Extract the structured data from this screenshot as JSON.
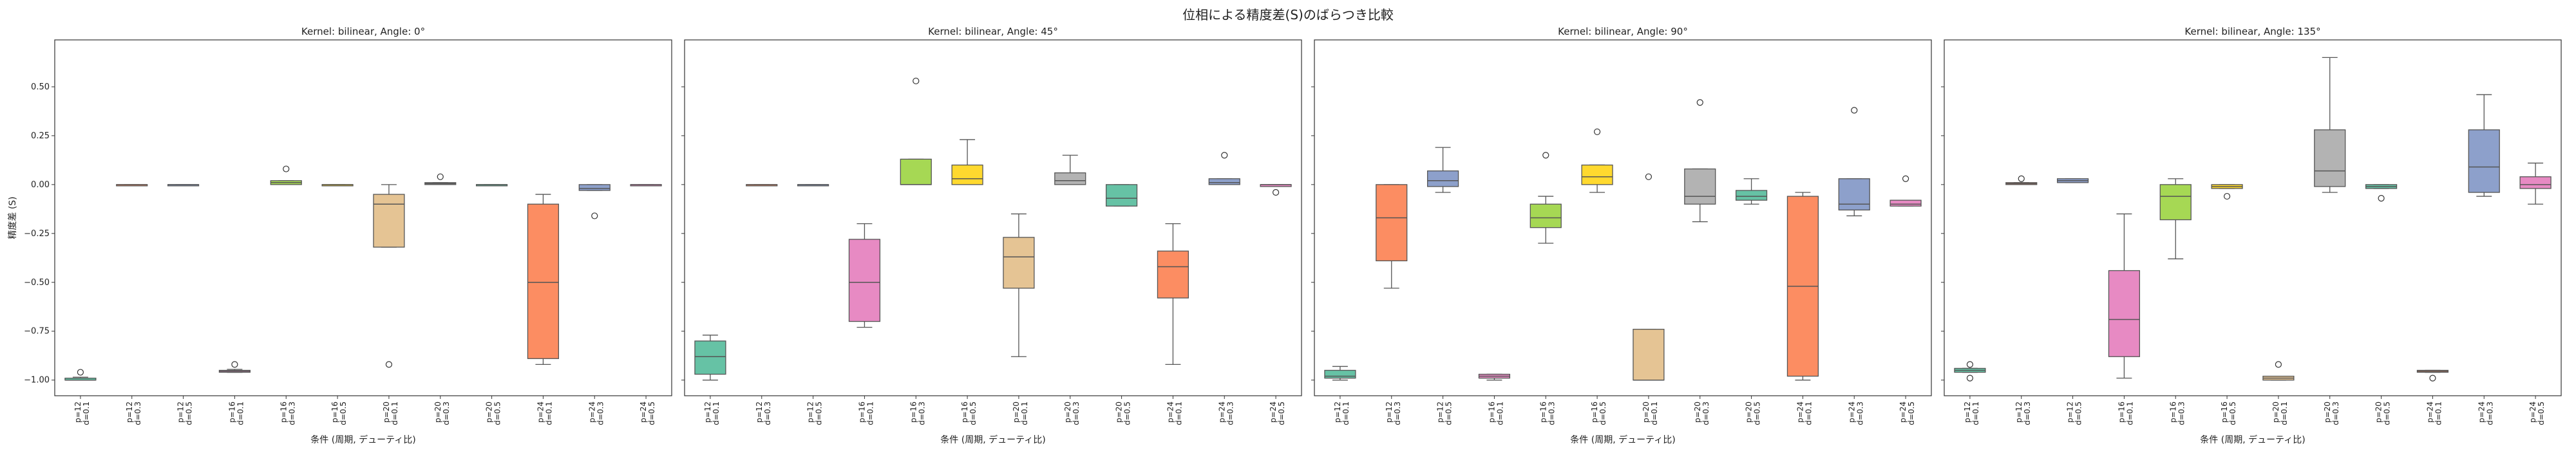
{
  "figure": {
    "suptitle": "位相による精度差(S)のばらつき比較"
  },
  "chart_data": [
    {
      "type": "box",
      "title": "Kernel: bilinear, Angle: 0°",
      "xlabel": "条件 (周期, デューティ比)",
      "ylabel": "精度差 (S)",
      "ylim": [
        -1.08,
        0.74
      ],
      "yticks": [
        -1.0,
        -0.75,
        -0.5,
        -0.25,
        0.0,
        0.25,
        0.5
      ],
      "ytick_labels": [
        "−1.00",
        "−0.75",
        "−0.50",
        "−0.25",
        "0.00",
        "0.25",
        "0.50"
      ],
      "categories": [
        [
          "p=12",
          "d=0.1"
        ],
        [
          "p=12",
          "d=0.3"
        ],
        [
          "p=12",
          "d=0.5"
        ],
        [
          "p=16",
          "d=0.1"
        ],
        [
          "p=16",
          "d=0.3"
        ],
        [
          "p=16",
          "d=0.5"
        ],
        [
          "p=20",
          "d=0.1"
        ],
        [
          "p=20",
          "d=0.3"
        ],
        [
          "p=20",
          "d=0.5"
        ],
        [
          "p=24",
          "d=0.1"
        ],
        [
          "p=24",
          "d=0.3"
        ],
        [
          "p=24",
          "d=0.5"
        ]
      ],
      "boxes": [
        {
          "min": -1.0,
          "q1": -1.0,
          "median": -1.0,
          "q3": -0.99,
          "max": -0.985,
          "outliers": [
            -0.96
          ]
        },
        {
          "min": 0.0,
          "q1": 0.0,
          "median": 0.0,
          "q3": 0.0,
          "max": 0.0,
          "outliers": []
        },
        {
          "min": 0.0,
          "q1": 0.0,
          "median": 0.0,
          "q3": 0.0,
          "max": 0.0,
          "outliers": []
        },
        {
          "min": -0.96,
          "q1": -0.96,
          "median": -0.955,
          "q3": -0.95,
          "max": -0.945,
          "outliers": [
            -0.92
          ]
        },
        {
          "min": 0.0,
          "q1": 0.0,
          "median": 0.01,
          "q3": 0.02,
          "max": 0.02,
          "outliers": [
            0.08
          ]
        },
        {
          "min": 0.0,
          "q1": 0.0,
          "median": 0.0,
          "q3": 0.0,
          "max": 0.0,
          "outliers": []
        },
        {
          "min": -0.32,
          "q1": -0.32,
          "median": -0.1,
          "q3": -0.05,
          "max": 0.0,
          "outliers": [
            -0.92
          ]
        },
        {
          "min": 0.0,
          "q1": 0.0,
          "median": 0.005,
          "q3": 0.01,
          "max": 0.01,
          "outliers": [
            0.04
          ]
        },
        {
          "min": 0.0,
          "q1": 0.0,
          "median": 0.0,
          "q3": 0.0,
          "max": 0.0,
          "outliers": []
        },
        {
          "min": -0.92,
          "q1": -0.89,
          "median": -0.5,
          "q3": -0.1,
          "max": -0.05,
          "outliers": []
        },
        {
          "min": -0.03,
          "q1": -0.03,
          "median": -0.02,
          "q3": 0.0,
          "max": 0.0,
          "outliers": [
            -0.16
          ]
        },
        {
          "min": 0.0,
          "q1": 0.0,
          "median": 0.0,
          "q3": 0.0,
          "max": 0.0,
          "outliers": []
        }
      ]
    },
    {
      "type": "box",
      "title": "Kernel: bilinear, Angle: 45°",
      "xlabel": "条件 (周期, デューティ比)",
      "ylabel": "",
      "ylim": [
        -1.08,
        0.74
      ],
      "yticks": [
        -1.0,
        -0.75,
        -0.5,
        -0.25,
        0.0,
        0.25,
        0.5
      ],
      "ytick_labels": [],
      "categories": [
        [
          "p=12",
          "d=0.1"
        ],
        [
          "p=12",
          "d=0.3"
        ],
        [
          "p=12",
          "d=0.5"
        ],
        [
          "p=16",
          "d=0.1"
        ],
        [
          "p=16",
          "d=0.3"
        ],
        [
          "p=16",
          "d=0.5"
        ],
        [
          "p=20",
          "d=0.1"
        ],
        [
          "p=20",
          "d=0.3"
        ],
        [
          "p=20",
          "d=0.5"
        ],
        [
          "p=24",
          "d=0.1"
        ],
        [
          "p=24",
          "d=0.3"
        ],
        [
          "p=24",
          "d=0.5"
        ]
      ],
      "boxes": [
        {
          "min": -1.0,
          "q1": -0.97,
          "median": -0.88,
          "q3": -0.8,
          "max": -0.77,
          "outliers": []
        },
        {
          "min": 0.0,
          "q1": 0.0,
          "median": 0.0,
          "q3": 0.0,
          "max": 0.0,
          "outliers": []
        },
        {
          "min": 0.0,
          "q1": 0.0,
          "median": 0.0,
          "q3": 0.0,
          "max": 0.0,
          "outliers": []
        },
        {
          "min": -0.73,
          "q1": -0.7,
          "median": -0.5,
          "q3": -0.28,
          "max": -0.2,
          "outliers": []
        },
        {
          "min": 0.0,
          "q1": 0.0,
          "median": 0.0,
          "q3": 0.13,
          "max": 0.13,
          "outliers": [
            0.53
          ]
        },
        {
          "min": 0.0,
          "q1": 0.0,
          "median": 0.03,
          "q3": 0.1,
          "max": 0.23,
          "outliers": []
        },
        {
          "min": -0.88,
          "q1": -0.53,
          "median": -0.37,
          "q3": -0.27,
          "max": -0.15,
          "outliers": []
        },
        {
          "min": 0.0,
          "q1": 0.0,
          "median": 0.02,
          "q3": 0.06,
          "max": 0.15,
          "outliers": []
        },
        {
          "min": -0.11,
          "q1": -0.11,
          "median": -0.07,
          "q3": 0.0,
          "max": 0.0,
          "outliers": []
        },
        {
          "min": -0.92,
          "q1": -0.58,
          "median": -0.42,
          "q3": -0.34,
          "max": -0.2,
          "outliers": []
        },
        {
          "min": 0.0,
          "q1": 0.0,
          "median": 0.01,
          "q3": 0.03,
          "max": 0.03,
          "outliers": [
            0.15
          ]
        },
        {
          "min": -0.01,
          "q1": -0.01,
          "median": 0.0,
          "q3": 0.0,
          "max": 0.0,
          "outliers": [
            -0.04
          ]
        }
      ]
    },
    {
      "type": "box",
      "title": "Kernel: bilinear, Angle: 90°",
      "xlabel": "条件 (周期, デューティ比)",
      "ylabel": "",
      "ylim": [
        -1.08,
        0.74
      ],
      "yticks": [
        -1.0,
        -0.75,
        -0.5,
        -0.25,
        0.0,
        0.25,
        0.5
      ],
      "ytick_labels": [],
      "categories": [
        [
          "p=12",
          "d=0.1"
        ],
        [
          "p=12",
          "d=0.3"
        ],
        [
          "p=12",
          "d=0.5"
        ],
        [
          "p=16",
          "d=0.1"
        ],
        [
          "p=16",
          "d=0.3"
        ],
        [
          "p=16",
          "d=0.5"
        ],
        [
          "p=20",
          "d=0.1"
        ],
        [
          "p=20",
          "d=0.3"
        ],
        [
          "p=20",
          "d=0.5"
        ],
        [
          "p=24",
          "d=0.1"
        ],
        [
          "p=24",
          "d=0.3"
        ],
        [
          "p=24",
          "d=0.5"
        ]
      ],
      "boxes": [
        {
          "min": -1.0,
          "q1": -0.99,
          "median": -0.98,
          "q3": -0.95,
          "max": -0.93,
          "outliers": []
        },
        {
          "min": -0.53,
          "q1": -0.39,
          "median": -0.17,
          "q3": 0.0,
          "max": 0.0,
          "outliers": []
        },
        {
          "min": -0.04,
          "q1": -0.01,
          "median": 0.02,
          "q3": 0.07,
          "max": 0.19,
          "outliers": []
        },
        {
          "min": -1.0,
          "q1": -0.99,
          "median": -0.98,
          "q3": -0.97,
          "max": -0.97,
          "outliers": []
        },
        {
          "min": -0.3,
          "q1": -0.22,
          "median": -0.17,
          "q3": -0.1,
          "max": -0.06,
          "outliers": [
            0.15
          ]
        },
        {
          "min": -0.04,
          "q1": 0.0,
          "median": 0.04,
          "q3": 0.1,
          "max": 0.1,
          "outliers": [
            0.27
          ]
        },
        {
          "min": -1.0,
          "q1": -1.0,
          "median": -1.0,
          "q3": -0.74,
          "max": -0.74,
          "outliers": [
            0.04
          ]
        },
        {
          "min": -0.19,
          "q1": -0.1,
          "median": -0.06,
          "q3": 0.08,
          "max": 0.08,
          "outliers": [
            0.42
          ]
        },
        {
          "min": -0.1,
          "q1": -0.08,
          "median": -0.06,
          "q3": -0.03,
          "max": 0.03,
          "outliers": []
        },
        {
          "min": -1.0,
          "q1": -0.98,
          "median": -0.52,
          "q3": -0.06,
          "max": -0.04,
          "outliers": []
        },
        {
          "min": -0.16,
          "q1": -0.13,
          "median": -0.1,
          "q3": 0.03,
          "max": 0.03,
          "outliers": [
            0.38
          ]
        },
        {
          "min": -0.11,
          "q1": -0.11,
          "median": -0.1,
          "q3": -0.08,
          "max": -0.08,
          "outliers": [
            0.03
          ]
        }
      ]
    },
    {
      "type": "box",
      "title": "Kernel: bilinear, Angle: 135°",
      "xlabel": "条件 (周期, デューティ比)",
      "ylabel": "",
      "ylim": [
        -1.08,
        0.74
      ],
      "yticks": [
        -1.0,
        -0.75,
        -0.5,
        -0.25,
        0.0,
        0.25,
        0.5
      ],
      "ytick_labels": [],
      "categories": [
        [
          "p=12",
          "d=0.1"
        ],
        [
          "p=12",
          "d=0.3"
        ],
        [
          "p=12",
          "d=0.5"
        ],
        [
          "p=16",
          "d=0.1"
        ],
        [
          "p=16",
          "d=0.3"
        ],
        [
          "p=16",
          "d=0.5"
        ],
        [
          "p=20",
          "d=0.1"
        ],
        [
          "p=20",
          "d=0.3"
        ],
        [
          "p=20",
          "d=0.5"
        ],
        [
          "p=24",
          "d=0.1"
        ],
        [
          "p=24",
          "d=0.3"
        ],
        [
          "p=24",
          "d=0.5"
        ]
      ],
      "boxes": [
        {
          "min": -0.96,
          "q1": -0.96,
          "median": -0.95,
          "q3": -0.94,
          "max": -0.94,
          "outliers": [
            -0.92,
            -0.99
          ]
        },
        {
          "min": 0.0,
          "q1": 0.0,
          "median": 0.005,
          "q3": 0.01,
          "max": 0.01,
          "outliers": [
            0.03
          ]
        },
        {
          "min": 0.01,
          "q1": 0.01,
          "median": 0.02,
          "q3": 0.03,
          "max": 0.03,
          "outliers": []
        },
        {
          "min": -0.99,
          "q1": -0.88,
          "median": -0.69,
          "q3": -0.44,
          "max": -0.15,
          "outliers": []
        },
        {
          "min": -0.38,
          "q1": -0.18,
          "median": -0.06,
          "q3": 0.0,
          "max": 0.03,
          "outliers": []
        },
        {
          "min": -0.02,
          "q1": -0.02,
          "median": -0.01,
          "q3": 0.0,
          "max": 0.0,
          "outliers": [
            -0.06
          ]
        },
        {
          "min": -1.0,
          "q1": -1.0,
          "median": -0.99,
          "q3": -0.98,
          "max": -0.98,
          "outliers": [
            -0.92
          ]
        },
        {
          "min": -0.04,
          "q1": -0.01,
          "median": 0.07,
          "q3": 0.28,
          "max": 0.65,
          "outliers": []
        },
        {
          "min": -0.02,
          "q1": -0.02,
          "median": -0.01,
          "q3": 0.0,
          "max": 0.0,
          "outliers": [
            -0.07
          ]
        },
        {
          "min": -0.96,
          "q1": -0.96,
          "median": -0.955,
          "q3": -0.95,
          "max": -0.95,
          "outliers": [
            -0.99
          ]
        },
        {
          "min": -0.06,
          "q1": -0.04,
          "median": 0.09,
          "q3": 0.28,
          "max": 0.46,
          "outliers": []
        },
        {
          "min": -0.1,
          "q1": -0.02,
          "median": 0.0,
          "q3": 0.04,
          "max": 0.11,
          "outliers": []
        }
      ]
    }
  ]
}
